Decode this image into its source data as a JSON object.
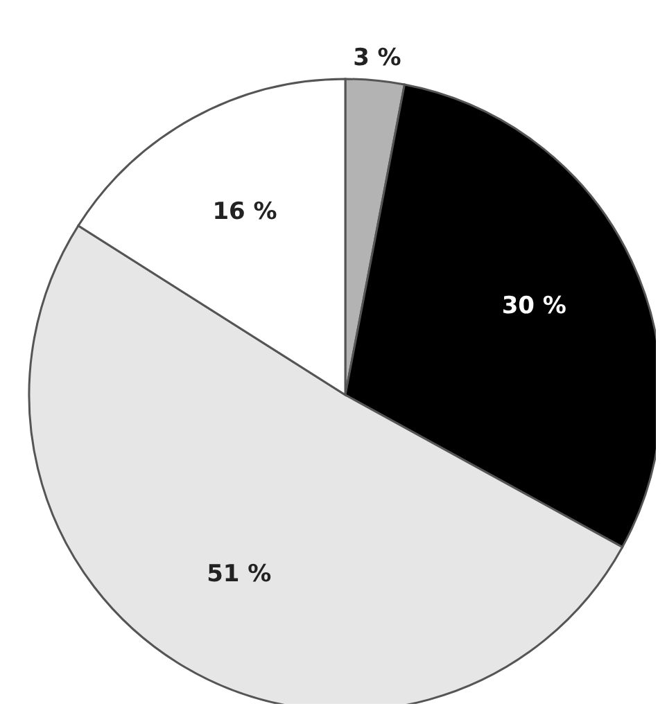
{
  "chart_data": {
    "type": "pie",
    "categories": [
      null,
      null,
      null,
      null
    ],
    "values": [
      3,
      30,
      51,
      16
    ],
    "colors": [
      "#b3b3b3",
      "#000000",
      "#e6e6e6",
      "#ffffff"
    ],
    "value_labels": [
      "3 %",
      "30 %",
      "51 %",
      "16 %"
    ]
  }
}
